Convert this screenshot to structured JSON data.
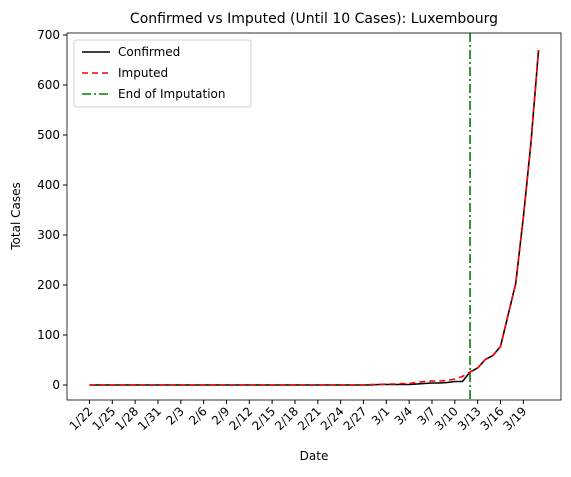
{
  "chart_data": {
    "type": "line",
    "title": "Confirmed vs Imputed (Until 10 Cases): Luxembourg",
    "x_label": "Date",
    "y_label": "Total Cases",
    "categories": [
      "1/22",
      null,
      null,
      "1/25",
      null,
      null,
      "1/28",
      null,
      null,
      "1/31",
      null,
      null,
      "2/3",
      null,
      null,
      "2/6",
      null,
      null,
      "2/9",
      null,
      null,
      "2/12",
      null,
      null,
      "2/15",
      null,
      null,
      "2/18",
      null,
      null,
      "2/21",
      null,
      null,
      "2/24",
      null,
      null,
      "2/27",
      null,
      null,
      "3/1",
      null,
      null,
      "3/4",
      null,
      null,
      "3/7",
      null,
      null,
      "3/10",
      null,
      null,
      "3/13",
      null,
      null,
      "3/16",
      null,
      null,
      "3/19",
      null,
      null
    ],
    "series": [
      {
        "name": "Confirmed",
        "color": "#000000",
        "dash": "none",
        "values": [
          0,
          0,
          0,
          0,
          0,
          0,
          0,
          0,
          0,
          0,
          0,
          0,
          0,
          0,
          0,
          0,
          0,
          0,
          0,
          0,
          0,
          0,
          0,
          0,
          0,
          0,
          0,
          0,
          0,
          0,
          0,
          0,
          0,
          0,
          0,
          0,
          0,
          0,
          1,
          1,
          1,
          1,
          1,
          2,
          3,
          4,
          4,
          5,
          7,
          7,
          26,
          34,
          51,
          59,
          77,
          140,
          203,
          335,
          484,
          670
        ]
      },
      {
        "name": "Imputed",
        "color": "#ff0000",
        "dash": "6 4",
        "values": [
          0,
          0,
          0,
          0,
          0,
          0,
          0,
          0,
          0,
          0,
          0,
          0,
          0,
          0,
          0,
          0,
          0,
          0,
          0,
          0,
          0,
          0,
          0,
          0,
          0,
          0,
          0,
          0,
          0,
          0,
          0,
          0,
          0,
          0,
          0,
          0,
          0,
          1,
          1,
          2,
          2,
          3,
          3,
          5,
          7,
          8,
          8,
          9,
          12,
          17,
          26,
          34,
          51,
          59,
          77,
          140,
          203,
          335,
          484,
          670
        ]
      }
    ],
    "vline": {
      "name": "End of Imputation",
      "color": "#008000",
      "x": 50
    },
    "xlim": [
      -2.95,
      61.95
    ],
    "ylim": [
      -30,
      704
    ],
    "yticks": [
      0,
      100,
      200,
      300,
      400,
      500,
      600,
      700
    ],
    "legend": "upper left"
  }
}
